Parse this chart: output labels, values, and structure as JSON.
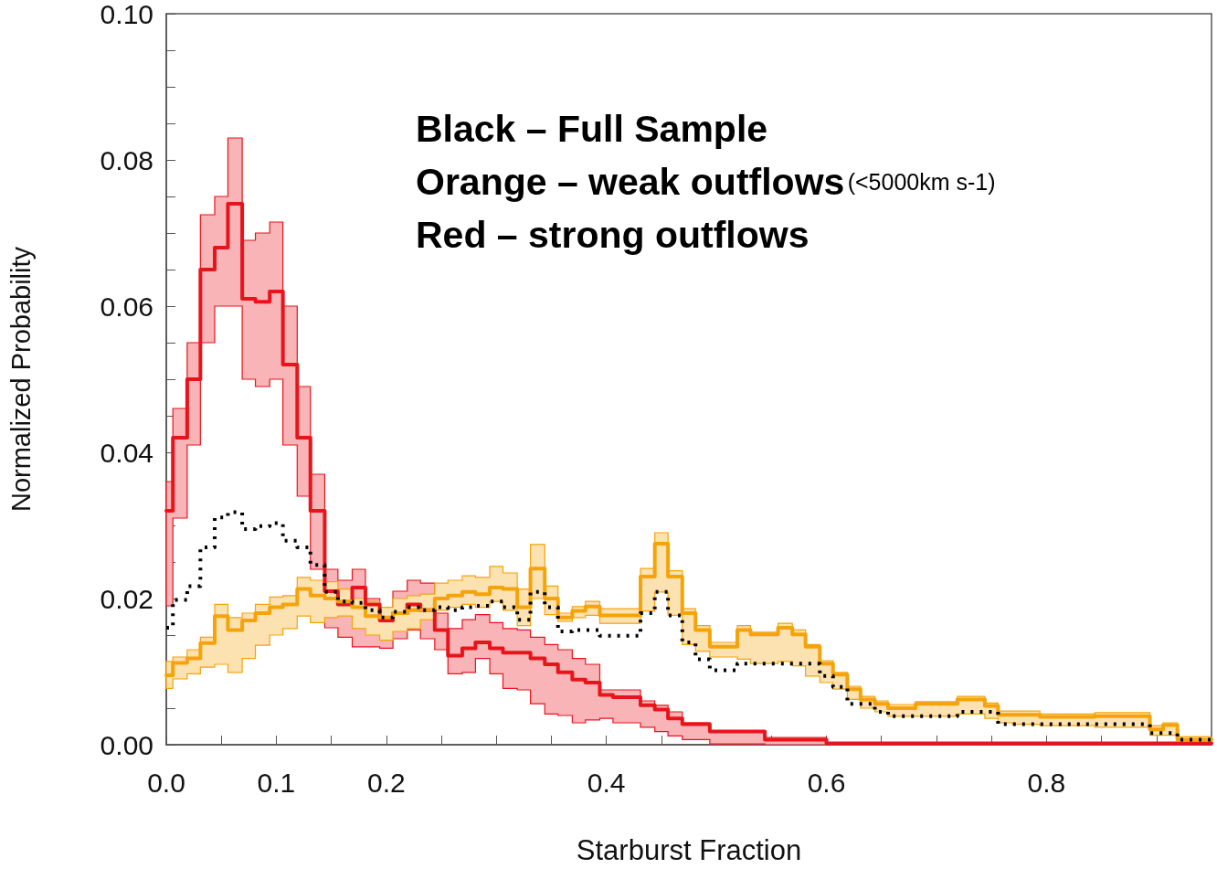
{
  "chart_data": {
    "type": "step",
    "xlabel": "Starburst Fraction",
    "ylabel": "Normalized Probability",
    "xlim": [
      0,
      0.95
    ],
    "ylim": [
      0,
      0.1
    ],
    "xticks": [
      {
        "value": 0,
        "label": "0.0"
      },
      {
        "value": 0.05,
        "label": null
      },
      0.1,
      {
        "value": 0.15,
        "label": null
      },
      0.2,
      {
        "value": 0.25,
        "label": null
      },
      {
        "value": 0.3,
        "label": null
      },
      {
        "value": 0.35,
        "label": null
      },
      0.4,
      {
        "value": 0.45,
        "label": null
      },
      {
        "value": 0.5,
        "label": null
      },
      {
        "value": 0.55,
        "label": null
      },
      0.6,
      {
        "value": 0.65,
        "label": null
      },
      {
        "value": 0.7,
        "label": null
      },
      {
        "value": 0.75,
        "label": null
      },
      0.8,
      {
        "value": 0.85,
        "label": null
      },
      {
        "value": 0.9,
        "label": null
      }
    ],
    "yticks": [
      {
        "value": 0,
        "label": "0.00"
      },
      {
        "value": 0.005,
        "label": null
      },
      {
        "value": 0.01,
        "label": null
      },
      {
        "value": 0.015,
        "label": null
      },
      0.02,
      {
        "value": 0.025,
        "label": null
      },
      {
        "value": 0.03,
        "label": null
      },
      {
        "value": 0.035,
        "label": null
      },
      0.04,
      {
        "value": 0.045,
        "label": null
      },
      {
        "value": 0.05,
        "label": null
      },
      {
        "value": 0.055,
        "label": null
      },
      0.06,
      {
        "value": 0.065,
        "label": null
      },
      {
        "value": 0.07,
        "label": null
      },
      {
        "value": 0.075,
        "label": null
      },
      0.08,
      {
        "value": 0.085,
        "label": null
      },
      {
        "value": 0.09,
        "label": null
      },
      {
        "value": 0.095,
        "label": null
      },
      {
        "value": 0.1,
        "label": "0.10"
      }
    ],
    "marker": "none",
    "annotations": [
      "Black – Full Sample",
      "Orange – weak outflows",
      "(<5000km s-1)",
      "Red – strong outflows"
    ],
    "series": [
      {
        "color": "#e8141b",
        "x": [
          0,
          0.006,
          0.019,
          0.031,
          0.044,
          0.056,
          0.069,
          0.081,
          0.094,
          0.106,
          0.119,
          0.131,
          0.144,
          0.156,
          0.169,
          0.181,
          0.194,
          0.206,
          0.219,
          0.231,
          0.244,
          0.256,
          0.269,
          0.281,
          0.294,
          0.306,
          0.319,
          0.331,
          0.344,
          0.356,
          0.369,
          0.381,
          0.394,
          0.406,
          0.431,
          0.444,
          0.456,
          0.469,
          0.494,
          0.544,
          0.6,
          0.95
        ],
        "values": [
          0.032,
          0.042,
          0.05,
          0.065,
          0.068,
          0.074,
          0.061,
          0.0606,
          0.062,
          0.052,
          0.042,
          0.032,
          0.021,
          0.0192,
          0.0215,
          0.0192,
          0.017,
          0.018,
          0.0192,
          0.0184,
          0.0157,
          0.0122,
          0.0132,
          0.014,
          0.0132,
          0.0126,
          0.0126,
          0.0118,
          0.011,
          0.0099,
          0.0089,
          0.0085,
          0.0068,
          0.0065,
          0.0054,
          0.0048,
          0.0036,
          0.0028,
          0.0018,
          0.0007,
          0.0002,
          0.0002
        ],
        "upper": [
          0.036,
          0.046,
          0.055,
          0.0725,
          0.075,
          0.083,
          0.069,
          0.07,
          0.0715,
          0.06,
          0.049,
          0.037,
          0.024,
          0.0225,
          0.024,
          0.02,
          0.0188,
          0.021,
          0.0225,
          0.0221,
          0.018,
          0.0159,
          0.0171,
          0.0178,
          0.0167,
          0.0159,
          0.0157,
          0.0147,
          0.0137,
          0.013,
          0.0118,
          0.011,
          0.0075,
          0.0075,
          0.006,
          0.0054,
          0.0045,
          0.003,
          0.0018,
          0.001,
          0.0003,
          0.0003
        ],
        "lower": [
          0.019,
          0.031,
          0.041,
          0.055,
          0.06,
          0.06,
          0.05,
          0.049,
          0.05,
          0.041,
          0.034,
          0.024,
          0.016,
          0.0147,
          0.0134,
          0.0134,
          0.0132,
          0.0145,
          0.0157,
          0.0145,
          0.013,
          0.0097,
          0.0099,
          0.0118,
          0.0097,
          0.0077,
          0.0075,
          0.0056,
          0.0042,
          0.004,
          0.003,
          0.0034,
          0.0036,
          0.003,
          0.0024,
          0.0018,
          0.0012,
          0.0007,
          0.0001,
          0,
          0,
          0
        ]
      },
      {
        "color": "#f5a30a",
        "x": [
          0,
          0.006,
          0.019,
          0.031,
          0.044,
          0.056,
          0.069,
          0.081,
          0.094,
          0.106,
          0.119,
          0.131,
          0.144,
          0.156,
          0.169,
          0.181,
          0.194,
          0.206,
          0.219,
          0.231,
          0.244,
          0.256,
          0.269,
          0.281,
          0.294,
          0.306,
          0.319,
          0.331,
          0.344,
          0.356,
          0.369,
          0.381,
          0.394,
          0.431,
          0.444,
          0.456,
          0.469,
          0.481,
          0.494,
          0.519,
          0.531,
          0.556,
          0.569,
          0.581,
          0.594,
          0.606,
          0.619,
          0.631,
          0.644,
          0.656,
          0.681,
          0.719,
          0.744,
          0.756,
          0.769,
          0.794,
          0.844,
          0.894,
          0.906,
          0.919,
          0.95
        ],
        "values": [
          0.0095,
          0.0112,
          0.0118,
          0.0139,
          0.0176,
          0.0157,
          0.017,
          0.018,
          0.0188,
          0.0192,
          0.0213,
          0.0204,
          0.02,
          0.0196,
          0.0188,
          0.0176,
          0.0174,
          0.018,
          0.0184,
          0.0184,
          0.02,
          0.0204,
          0.0209,
          0.0206,
          0.0215,
          0.0213,
          0.0188,
          0.0241,
          0.02,
          0.0174,
          0.0183,
          0.0189,
          0.0177,
          0.023,
          0.0275,
          0.023,
          0.018,
          0.0157,
          0.0134,
          0.0157,
          0.0151,
          0.016,
          0.0151,
          0.0134,
          0.0111,
          0.0096,
          0.0076,
          0.0062,
          0.0056,
          0.005,
          0.0056,
          0.0062,
          0.0053,
          0.0041,
          0.0041,
          0.0038,
          0.0039,
          0.0021,
          0.0027,
          0.0007,
          0.0007
        ],
        "upper": [
          0.0114,
          0.012,
          0.013,
          0.0147,
          0.0192,
          0.0174,
          0.018,
          0.0192,
          0.0202,
          0.0204,
          0.0229,
          0.0225,
          0.0223,
          0.0213,
          0.02,
          0.0196,
          0.0188,
          0.02,
          0.0204,
          0.0206,
          0.0221,
          0.0225,
          0.0231,
          0.0229,
          0.0244,
          0.0235,
          0.0213,
          0.0274,
          0.0217,
          0.018,
          0.0189,
          0.0196,
          0.0186,
          0.0241,
          0.029,
          0.0238,
          0.0186,
          0.0163,
          0.014,
          0.0163,
          0.0154,
          0.0166,
          0.0157,
          0.0137,
          0.0115,
          0.0099,
          0.008,
          0.0066,
          0.006,
          0.0055,
          0.0059,
          0.0066,
          0.0057,
          0.0046,
          0.0046,
          0.0042,
          0.0044,
          0.0026,
          0.003,
          0.0011,
          0.0011
        ],
        "lower": [
          0.0077,
          0.009,
          0.0097,
          0.0106,
          0.011,
          0.0099,
          0.0118,
          0.0136,
          0.015,
          0.0159,
          0.0176,
          0.0167,
          0.0174,
          0.0176,
          0.0159,
          0.015,
          0.0143,
          0.0155,
          0.0159,
          0.0171,
          0.0184,
          0.0188,
          0.0192,
          0.0188,
          0.0196,
          0.0184,
          0.0163,
          0.02,
          0.0178,
          0.0169,
          0.0174,
          0.0177,
          0.0166,
          0.0183,
          0.0209,
          0.0177,
          0.0137,
          0.0128,
          0.012,
          0.0117,
          0.0111,
          0.0114,
          0.0108,
          0.0094,
          0.0085,
          0.0076,
          0.0062,
          0.005,
          0.0045,
          0.0039,
          0.0039,
          0.0042,
          0.0036,
          0.003,
          0.0028,
          0.0026,
          0.0024,
          0.0013,
          0.0013,
          0.0001,
          0.0001
        ]
      },
      {
        "color": "#000000",
        "line_style": "dotted",
        "x": [
          0,
          0.006,
          0.019,
          0.031,
          0.044,
          0.056,
          0.069,
          0.081,
          0.094,
          0.106,
          0.119,
          0.131,
          0.144,
          0.156,
          0.169,
          0.181,
          0.194,
          0.206,
          0.219,
          0.231,
          0.244,
          0.256,
          0.269,
          0.281,
          0.294,
          0.306,
          0.319,
          0.331,
          0.344,
          0.356,
          0.369,
          0.394,
          0.431,
          0.444,
          0.456,
          0.469,
          0.481,
          0.494,
          0.519,
          0.594,
          0.606,
          0.619,
          0.644,
          0.656,
          0.719,
          0.756,
          0.894,
          0.919,
          0.95
        ],
        "values": [
          0.016,
          0.0198,
          0.0217,
          0.027,
          0.0311,
          0.0318,
          0.0295,
          0.0299,
          0.0303,
          0.0279,
          0.027,
          0.0246,
          0.0209,
          0.0196,
          0.0194,
          0.0184,
          0.0174,
          0.0182,
          0.0188,
          0.0184,
          0.0188,
          0.0184,
          0.0188,
          0.019,
          0.0196,
          0.0188,
          0.0171,
          0.0209,
          0.0188,
          0.0155,
          0.0157,
          0.0149,
          0.018,
          0.0209,
          0.0177,
          0.014,
          0.0117,
          0.0102,
          0.0111,
          0.0094,
          0.0079,
          0.0056,
          0.0045,
          0.0039,
          0.0045,
          0.0028,
          0.0016,
          0.0007,
          0.0007
        ]
      }
    ]
  }
}
